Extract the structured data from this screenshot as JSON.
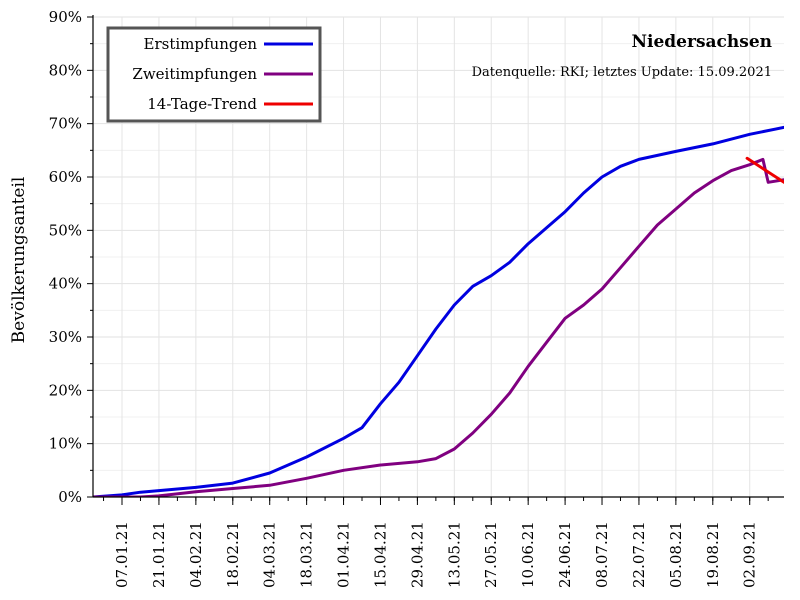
{
  "chart_data": {
    "type": "line",
    "title": "Niedersachsen",
    "subtitle": "Datenquelle: RKI; letztes Update: 15.09.2021",
    "xlabel": "",
    "ylabel": "Bevölkerungsanteil",
    "ylim": [
      0,
      90
    ],
    "y_ticks": [
      "0%",
      "10%",
      "20%",
      "30%",
      "40%",
      "50%",
      "60%",
      "70%",
      "80%",
      "90%"
    ],
    "x_tick_labels": [
      "07.01.21",
      "21.01.21",
      "04.02.21",
      "18.02.21",
      "04.03.21",
      "18.03.21",
      "01.04.21",
      "15.04.21",
      "29.04.21",
      "13.05.21",
      "27.05.21",
      "10.06.21",
      "24.06.21",
      "08.07.21",
      "22.07.21",
      "05.08.21",
      "19.08.21",
      "02.09.21"
    ],
    "grid": true,
    "legend_position": "top-left",
    "series": [
      {
        "name": "Erstimpfungen",
        "color": "#0000e0",
        "points": [
          [
            "2020-12-27",
            0
          ],
          [
            "2021-01-07",
            0.4
          ],
          [
            "2021-01-14",
            0.9
          ],
          [
            "2021-01-21",
            1.2
          ],
          [
            "2021-02-04",
            1.8
          ],
          [
            "2021-02-18",
            2.6
          ],
          [
            "2021-03-04",
            4.5
          ],
          [
            "2021-03-18",
            7.5
          ],
          [
            "2021-04-01",
            11
          ],
          [
            "2021-04-08",
            13
          ],
          [
            "2021-04-15",
            17.5
          ],
          [
            "2021-04-22",
            21.5
          ],
          [
            "2021-04-29",
            26.5
          ],
          [
            "2021-05-06",
            31.5
          ],
          [
            "2021-05-13",
            36
          ],
          [
            "2021-05-20",
            39.5
          ],
          [
            "2021-05-27",
            41.5
          ],
          [
            "2021-06-03",
            44
          ],
          [
            "2021-06-10",
            47.5
          ],
          [
            "2021-06-17",
            50.5
          ],
          [
            "2021-06-24",
            53.5
          ],
          [
            "2021-07-01",
            57
          ],
          [
            "2021-07-08",
            60
          ],
          [
            "2021-07-15",
            62
          ],
          [
            "2021-07-22",
            63.3
          ],
          [
            "2021-08-05",
            64.8
          ],
          [
            "2021-08-19",
            66.2
          ],
          [
            "2021-09-02",
            68
          ],
          [
            "2021-09-15",
            69.3
          ]
        ]
      },
      {
        "name": "Zweitimpfungen",
        "color": "#800080",
        "points": [
          [
            "2020-12-27",
            0
          ],
          [
            "2021-01-14",
            0
          ],
          [
            "2021-01-21",
            0.2
          ],
          [
            "2021-02-04",
            1
          ],
          [
            "2021-02-18",
            1.6
          ],
          [
            "2021-03-04",
            2.2
          ],
          [
            "2021-03-18",
            3.5
          ],
          [
            "2021-04-01",
            5
          ],
          [
            "2021-04-15",
            6
          ],
          [
            "2021-04-29",
            6.6
          ],
          [
            "2021-05-06",
            7.2
          ],
          [
            "2021-05-13",
            9
          ],
          [
            "2021-05-20",
            12
          ],
          [
            "2021-05-27",
            15.5
          ],
          [
            "2021-06-03",
            19.5
          ],
          [
            "2021-06-10",
            24.5
          ],
          [
            "2021-06-17",
            29
          ],
          [
            "2021-06-24",
            33.5
          ],
          [
            "2021-07-01",
            36
          ],
          [
            "2021-07-08",
            39
          ],
          [
            "2021-07-15",
            43
          ],
          [
            "2021-07-22",
            47
          ],
          [
            "2021-07-29",
            51
          ],
          [
            "2021-08-05",
            54
          ],
          [
            "2021-08-12",
            57
          ],
          [
            "2021-08-19",
            59.3
          ],
          [
            "2021-08-26",
            61.2
          ],
          [
            "2021-09-02",
            62.3
          ],
          [
            "2021-09-07",
            63.3
          ],
          [
            "2021-09-09",
            59
          ],
          [
            "2021-09-15",
            59.5
          ]
        ]
      },
      {
        "name": "14-Tage-Trend",
        "color": "#ee0000",
        "points": [
          [
            "2021-09-01",
            63.5
          ],
          [
            "2021-09-15",
            59
          ]
        ]
      }
    ]
  }
}
